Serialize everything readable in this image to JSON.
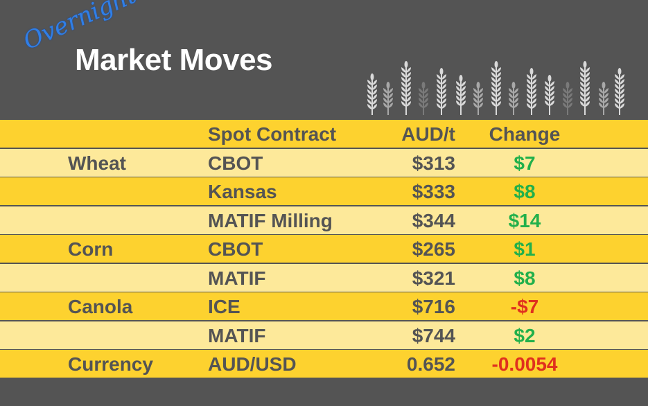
{
  "header": {
    "script_title": "Overnight",
    "title": "Market Moves"
  },
  "columns": {
    "category": "",
    "contract": "Spot Contract",
    "price": "AUD/t",
    "change": "Change"
  },
  "rows": [
    {
      "category": "Wheat",
      "contract": "CBOT",
      "price": "$313",
      "change": "$7",
      "direction": "up"
    },
    {
      "category": "",
      "contract": "Kansas",
      "price": "$333",
      "change": "$8",
      "direction": "up"
    },
    {
      "category": "",
      "contract": "MATIF Milling",
      "price": "$344",
      "change": "$14",
      "direction": "up"
    },
    {
      "category": "Corn",
      "contract": "CBOT",
      "price": "$265",
      "change": "$1",
      "direction": "up"
    },
    {
      "category": "",
      "contract": "MATIF",
      "price": "$321",
      "change": "$8",
      "direction": "up"
    },
    {
      "category": "Canola",
      "contract": "ICE",
      "price": "$716",
      "change": "-$7",
      "direction": "down"
    },
    {
      "category": "",
      "contract": "MATIF",
      "price": "$744",
      "change": "$2",
      "direction": "up"
    },
    {
      "category": "Currency",
      "contract": "AUD/USD",
      "price": "0.652",
      "change": "-0.0054",
      "direction": "down"
    }
  ],
  "colors": {
    "background": "#545454",
    "yellow": "#fdd22f",
    "light_yellow": "#fde99a",
    "up": "#22b04b",
    "down": "#e0301e",
    "script": "#2f7fe8"
  }
}
